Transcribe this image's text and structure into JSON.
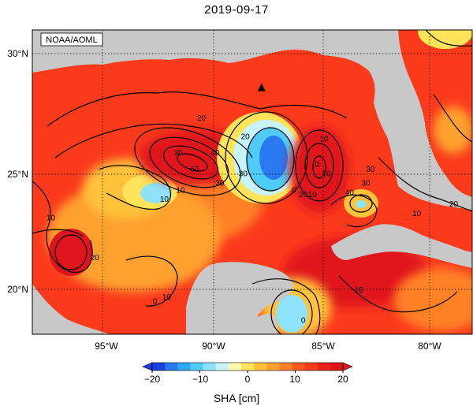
{
  "header": {
    "date": "2019-09-17"
  },
  "map": {
    "credit": "NOAA/AOML",
    "lat_ticks": [
      "30°N",
      "25°N",
      "20°N"
    ],
    "lon_ticks": [
      "95°W",
      "90°W",
      "85°W",
      "80°W"
    ],
    "lat_range": [
      18.1,
      31.2
    ],
    "lon_range": [
      -98.5,
      -79.5
    ],
    "marker": {
      "symbol": "triangle",
      "lat": 28.7,
      "lon": -88.6
    },
    "contour_labels": [
      {
        "text": "20",
        "lat": 27.4,
        "lon": -91.2
      },
      {
        "text": "20",
        "lat": 26.6,
        "lon": -89.3
      },
      {
        "text": "10",
        "lat": 26.5,
        "lon": -85.9
      },
      {
        "text": "30",
        "lat": 25.9,
        "lon": -92.2
      },
      {
        "text": "40",
        "lat": 25.9,
        "lon": -90.6
      },
      {
        "text": "60",
        "lat": 25.2,
        "lon": -91.5
      },
      {
        "text": "30",
        "lat": 25.0,
        "lon": -89.4
      },
      {
        "text": "30",
        "lat": 24.6,
        "lon": -90.4
      },
      {
        "text": "0",
        "lat": 25.4,
        "lon": -86.2
      },
      {
        "text": "10",
        "lat": 25.0,
        "lon": -85.8
      },
      {
        "text": "0",
        "lat": 24.3,
        "lon": -87.2
      },
      {
        "text": "10",
        "lat": 24.1,
        "lon": -86.4
      },
      {
        "text": "10",
        "lat": 24.3,
        "lon": -92.1
      },
      {
        "text": "10",
        "lat": 23.9,
        "lon": -92.8
      },
      {
        "text": "20",
        "lat": 24.1,
        "lon": -86.8
      },
      {
        "text": "40",
        "lat": 24.2,
        "lon": -84.8
      },
      {
        "text": "30",
        "lat": 24.6,
        "lon": -84.1
      },
      {
        "text": "30",
        "lat": 25.2,
        "lon": -83.9
      },
      {
        "text": "10",
        "lat": 23.1,
        "lon": -97.7
      },
      {
        "text": "20",
        "lat": 21.4,
        "lon": -95.8
      },
      {
        "text": "0",
        "lat": 19.5,
        "lon": -93.2
      },
      {
        "text": "10",
        "lat": 19.7,
        "lon": -92.7
      },
      {
        "text": "0",
        "lat": 18.7,
        "lon": -86.8
      },
      {
        "text": "10",
        "lat": 20.0,
        "lon": -84.4
      },
      {
        "text": "10",
        "lat": 23.3,
        "lon": -81.9
      },
      {
        "text": "20",
        "lat": 23.7,
        "lon": -80.3
      }
    ]
  },
  "colorbar": {
    "title": "SHA [cm]",
    "min": -20,
    "max": 20,
    "ticks": [
      "−20",
      "−10",
      "0",
      "10",
      "20"
    ],
    "colors": [
      "#1b3fe0",
      "#2979f2",
      "#2fa6f7",
      "#4fcbf8",
      "#8ee3fa",
      "#c7f3fb",
      "#fff9b0",
      "#ffe45a",
      "#ffc23a",
      "#ffa12f",
      "#ff8127",
      "#ff5a1e",
      "#fb3a1c",
      "#ef1f1c",
      "#e0141c"
    ]
  }
}
